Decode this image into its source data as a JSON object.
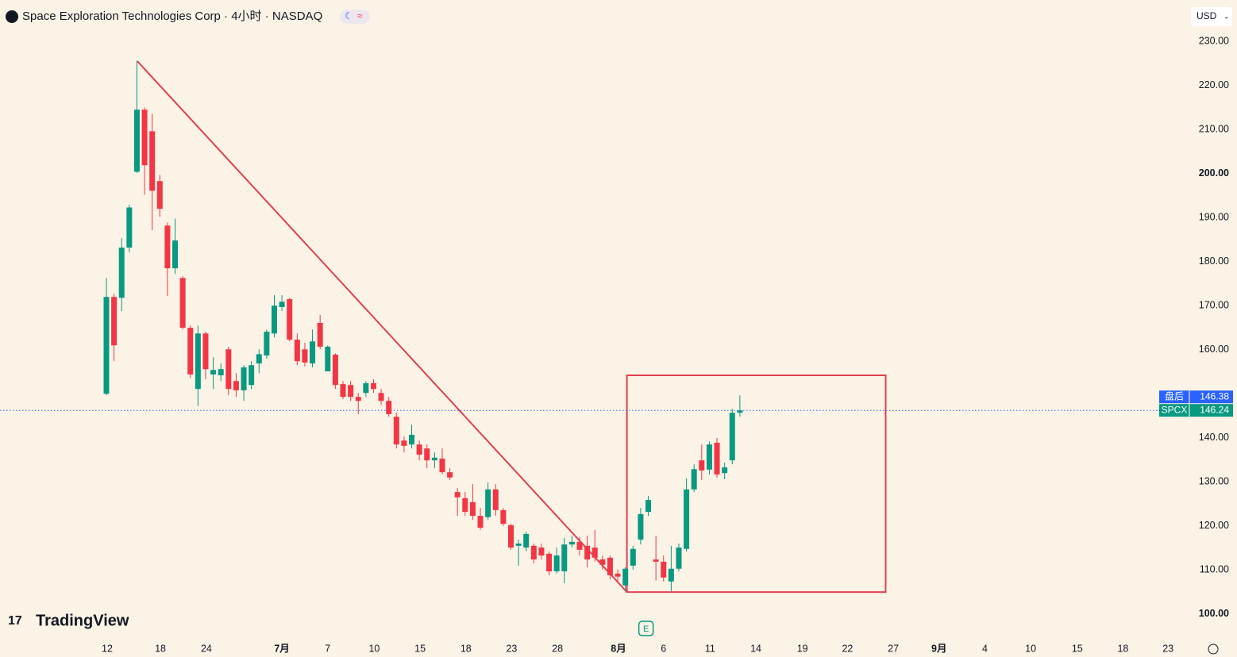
{
  "chart_data": {
    "type": "candlestick",
    "title": "Space Exploration Technologies Corp · 4小时 · NASDAQ",
    "currency": "USD",
    "brand": "TradingView",
    "event_marker": {
      "label": "E",
      "x": 70.7
    },
    "colors": {
      "up": "#089981",
      "down": "#f23645",
      "drawing": "#e0404f"
    },
    "xlim": [
      -13.94,
      142.1
    ],
    "ylim": [
      95.3,
      239.4
    ],
    "xticks": [
      {
        "value": 0.1,
        "label": "12"
      },
      {
        "value": 7.08,
        "label": "18"
      },
      {
        "value": 13.1,
        "label": "24"
      },
      {
        "value": 23.0,
        "label": "7月"
      },
      {
        "value": 29.0,
        "label": "7"
      },
      {
        "value": 35.1,
        "label": "10"
      },
      {
        "value": 41.1,
        "label": "15"
      },
      {
        "value": 47.1,
        "label": "18"
      },
      {
        "value": 53.1,
        "label": "23"
      },
      {
        "value": 59.1,
        "label": "28"
      },
      {
        "value": 67.1,
        "label": "8月"
      },
      {
        "value": 73.0,
        "label": "6"
      },
      {
        "value": 79.1,
        "label": "11"
      },
      {
        "value": 85.1,
        "label": "14"
      },
      {
        "value": 91.2,
        "label": "19"
      },
      {
        "value": 97.1,
        "label": "22"
      },
      {
        "value": 103.1,
        "label": "27"
      },
      {
        "value": 109.1,
        "label": "9月"
      },
      {
        "value": 115.1,
        "label": "4"
      },
      {
        "value": 121.1,
        "label": "10"
      },
      {
        "value": 127.2,
        "label": "15"
      },
      {
        "value": 133.2,
        "label": "18"
      },
      {
        "value": 139.1,
        "label": "23"
      }
    ],
    "yticks": [
      {
        "value": 100,
        "label": "100.00"
      },
      {
        "value": 110,
        "label": "110.00"
      },
      {
        "value": 120,
        "label": "120.00"
      },
      {
        "value": 130,
        "label": "130.00"
      },
      {
        "value": 140,
        "label": "140.00"
      },
      {
        "value": 160,
        "label": "160.00"
      },
      {
        "value": 170,
        "label": "170.00"
      },
      {
        "value": 180,
        "label": "180.00"
      },
      {
        "value": 190,
        "label": "190.00"
      },
      {
        "value": 200,
        "label": "200.00"
      },
      {
        "value": 210,
        "label": "210.00"
      },
      {
        "value": 220,
        "label": "220.00"
      },
      {
        "value": 230,
        "label": "230.00"
      }
    ],
    "candles": {
      "open": [
        150.0,
        172.0,
        171.8,
        183.2,
        200.4,
        214.5,
        209.6,
        198.3,
        188.2,
        178.5,
        176.3,
        165.0,
        151.1,
        163.7,
        154.4,
        154.2,
        160.1,
        152.9,
        150.8,
        152.0,
        156.9,
        158.7,
        163.7,
        169.7,
        171.5,
        162.3,
        160.1,
        156.9,
        166.1,
        155.1,
        158.9,
        152.2,
        152.0,
        149.3,
        150.2,
        152.4,
        150.2,
        148.4,
        144.8,
        139.4,
        138.5,
        138.5,
        137.6,
        134.9,
        135.3,
        132.2,
        127.7,
        126.3,
        125.4,
        122.3,
        122.0,
        128.3,
        123.6,
        120.2,
        115.5,
        115.1,
        115.5,
        115.1,
        113.7,
        109.7,
        109.7,
        115.8,
        116.4,
        115.5,
        115.1,
        112.4,
        112.8,
        109.2,
        106.5,
        111.0,
        116.9,
        123.2,
        112.4,
        111.9,
        107.4,
        110.3,
        114.8,
        128.3,
        134.9,
        132.8,
        138.9,
        132.0,
        134.9,
        145.7
      ],
      "high": [
        176.3,
        172.7,
        185.3,
        192.9,
        225.6,
        215.0,
        213.6,
        199.7,
        188.9,
        189.8,
        176.7,
        165.5,
        165.5,
        164.1,
        158.3,
        156.9,
        160.7,
        154.7,
        156.5,
        157.4,
        160.1,
        164.6,
        172.4,
        172.4,
        171.8,
        163.7,
        161.6,
        164.6,
        167.9,
        161.0,
        159.2,
        152.9,
        152.9,
        150.2,
        152.9,
        153.3,
        151.1,
        149.3,
        145.7,
        140.3,
        143.0,
        139.4,
        138.5,
        136.7,
        137.6,
        133.1,
        128.6,
        127.7,
        129.5,
        124.1,
        129.9,
        129.5,
        124.1,
        120.5,
        116.9,
        118.7,
        116.0,
        116.0,
        114.2,
        115.1,
        117.3,
        117.8,
        117.5,
        117.8,
        119.1,
        113.3,
        113.3,
        110.1,
        110.6,
        115.5,
        124.1,
        126.8,
        117.8,
        113.3,
        115.5,
        116.0,
        130.8,
        134.0,
        138.5,
        139.2,
        140.0,
        134.4,
        146.6,
        149.7
      ],
      "low": [
        149.7,
        157.4,
        168.8,
        182.1,
        200.1,
        195.2,
        187.1,
        190.2,
        172.2,
        177.2,
        164.6,
        153.6,
        147.2,
        153.3,
        151.1,
        152.9,
        149.7,
        149.3,
        148.4,
        151.1,
        154.7,
        158.0,
        162.8,
        168.8,
        161.9,
        156.5,
        156.2,
        156.0,
        160.1,
        155.1,
        151.1,
        148.8,
        148.4,
        145.4,
        149.3,
        150.2,
        147.5,
        144.8,
        137.6,
        136.7,
        137.6,
        134.9,
        133.1,
        133.1,
        131.7,
        130.4,
        122.3,
        122.3,
        121.4,
        119.1,
        121.4,
        122.3,
        120.0,
        114.6,
        111.0,
        114.2,
        111.5,
        112.4,
        108.8,
        109.2,
        107.0,
        115.1,
        113.3,
        110.6,
        111.9,
        110.1,
        107.9,
        107.0,
        105.2,
        110.1,
        115.8,
        122.3,
        107.6,
        107.4,
        105.2,
        109.7,
        114.2,
        127.7,
        130.4,
        131.7,
        131.0,
        130.6,
        134.0,
        144.8
      ],
      "close": [
        172.0,
        161.0,
        183.2,
        192.3,
        214.5,
        201.9,
        196.1,
        192.0,
        178.5,
        184.8,
        165.0,
        154.4,
        163.7,
        155.6,
        155.4,
        155.6,
        151.1,
        150.8,
        156.0,
        156.5,
        159.0,
        164.1,
        170.0,
        170.9,
        162.3,
        157.4,
        157.1,
        161.9,
        160.7,
        160.7,
        152.0,
        149.3,
        149.3,
        148.4,
        152.4,
        151.1,
        148.4,
        145.4,
        138.5,
        138.2,
        140.7,
        136.2,
        134.9,
        135.5,
        132.2,
        131.0,
        126.5,
        123.2,
        122.3,
        119.6,
        128.3,
        123.6,
        120.5,
        115.1,
        116.0,
        118.2,
        112.4,
        113.3,
        109.7,
        113.3,
        115.8,
        116.4,
        114.6,
        112.4,
        112.8,
        111.2,
        108.8,
        108.5,
        110.3,
        114.8,
        122.7,
        125.9,
        111.9,
        108.3,
        110.3,
        115.1,
        128.3,
        132.9,
        132.6,
        138.5,
        131.7,
        133.3,
        145.7,
        146.24
      ]
    },
    "trendline": {
      "x": [
        4.06,
        68.2
      ],
      "y": [
        225.5,
        105.0
      ]
    },
    "box": {
      "x": [
        68.2,
        102.1
      ],
      "y": [
        105.0,
        154.2
      ]
    },
    "price_labels": [
      {
        "name": "盘后",
        "value": 146.38,
        "color": "#2962ff"
      },
      {
        "name": "SPCX",
        "value": 146.24,
        "color": "#089981"
      }
    ]
  }
}
